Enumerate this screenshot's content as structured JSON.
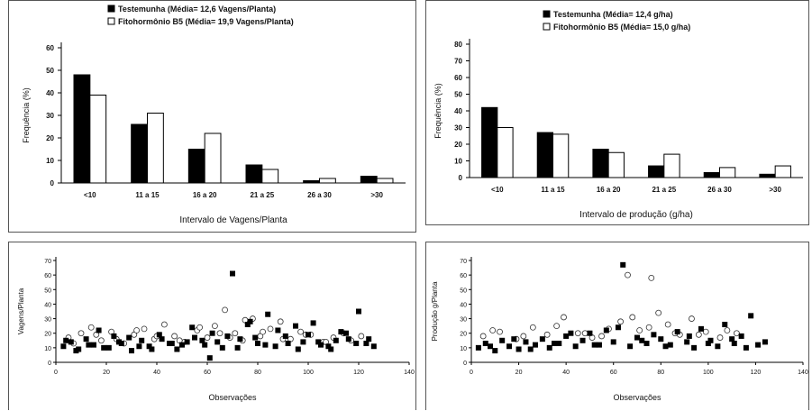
{
  "chart_data": [
    {
      "type": "bar",
      "legend": [
        "Testemunha (Média= 12,6 Vagens/Planta)",
        "Fitohormônio B5 (Média= 19,9 Vagens/Planta)"
      ],
      "legend_position": "top",
      "categories": [
        "<10",
        "11 a 15",
        "16 a 20",
        "21 a 25",
        "26 a 30",
        ">30"
      ],
      "series": [
        {
          "name": "Testemunha (Média= 12,6 Vagens/Planta)",
          "color": "#000000",
          "values": [
            48,
            26,
            15,
            8,
            1,
            3
          ]
        },
        {
          "name": "Fitohormônio B5 (Média= 19,9 Vagens/Planta)",
          "color": "#ffffff",
          "values": [
            39,
            31,
            22,
            6,
            2,
            2
          ]
        }
      ],
      "xlabel": "Intervalo de Vagens/Planta",
      "ylabel": "Frequência (%)",
      "ylim": [
        0,
        60
      ],
      "yticks": [
        0,
        10,
        20,
        30,
        40,
        50,
        60
      ],
      "grid": false
    },
    {
      "type": "bar",
      "legend": [
        "Testemunha (Média= 12,4 g/ha)",
        "Fitohormônio B5 (Média= 15,0 g/ha)"
      ],
      "legend_position": "top",
      "categories": [
        "<10",
        "11 a 15",
        "16 a 20",
        "21 a 25",
        "26 a 30",
        ">30"
      ],
      "series": [
        {
          "name": "Testemunha (Média= 12,4 g/ha)",
          "color": "#000000",
          "values": [
            42,
            27,
            17,
            7,
            3,
            2
          ]
        },
        {
          "name": "Fitohormônio B5 (Média= 15,0 g/ha)",
          "color": "#ffffff",
          "values": [
            30,
            26,
            15,
            14,
            6,
            7
          ]
        }
      ],
      "xlabel": "Intervalo de produção (g/ha)",
      "ylabel": "Frequência (%)",
      "ylim": [
        0,
        80
      ],
      "yticks": [
        0,
        10,
        20,
        30,
        40,
        50,
        60,
        70,
        80
      ],
      "grid": false
    },
    {
      "type": "scatter",
      "series": [
        {
          "name": "Testemunha",
          "color": "#000000",
          "marker": "square",
          "x": [
            3,
            6,
            9,
            12,
            15,
            19,
            23,
            26,
            30,
            34,
            37,
            41,
            45,
            48,
            52,
            55,
            59,
            62,
            66,
            70,
            73,
            77,
            80,
            84,
            87,
            91,
            95,
            98,
            102,
            105,
            109,
            113,
            116,
            120,
            123,
            126,
            4,
            8,
            13,
            17,
            21,
            25,
            29,
            33,
            38,
            42,
            46,
            50,
            54,
            58,
            61,
            64,
            68,
            72,
            76,
            79,
            83,
            88,
            92,
            96,
            100,
            104,
            108,
            111,
            115,
            119,
            124
          ],
          "y": [
            11,
            14,
            9,
            16,
            12,
            10,
            18,
            13,
            8,
            15,
            11,
            19,
            13,
            9,
            14,
            17,
            12,
            20,
            10,
            61,
            16,
            28,
            13,
            33,
            11,
            18,
            25,
            14,
            27,
            12,
            9,
            21,
            16,
            35,
            13,
            11,
            15,
            8,
            12,
            22,
            10,
            14,
            17,
            11,
            9,
            16,
            13,
            12,
            24,
            15,
            3,
            14,
            18,
            10,
            26,
            17,
            12,
            22,
            13,
            9,
            19,
            14,
            11,
            15,
            20,
            13,
            16
          ]
        },
        {
          "name": "Fitohormônio B5",
          "color": "#ffffff",
          "marker": "circle",
          "x": [
            5,
            10,
            14,
            18,
            22,
            27,
            31,
            35,
            39,
            43,
            47,
            51,
            56,
            60,
            63,
            67,
            71,
            74,
            78,
            81,
            85,
            89,
            93,
            97,
            101,
            106,
            110,
            114,
            117,
            121,
            7,
            16,
            24,
            32,
            40,
            49,
            57,
            65,
            69,
            75,
            82,
            90,
            99,
            107
          ],
          "y": [
            17,
            20,
            24,
            15,
            21,
            13,
            19,
            23,
            16,
            26,
            18,
            14,
            22,
            17,
            25,
            36,
            20,
            15,
            30,
            18,
            23,
            28,
            16,
            21,
            19,
            14,
            17,
            20,
            15,
            18,
            13,
            19,
            16,
            22,
            18,
            15,
            24,
            20,
            17,
            29,
            21,
            16,
            19,
            14
          ]
        }
      ],
      "xlabel": "Observações",
      "ylabel": "Vagens/Planta",
      "xlim": [
        0,
        140
      ],
      "ylim": [
        0,
        70
      ],
      "xticks": [
        0,
        20,
        40,
        60,
        80,
        100,
        120,
        140
      ],
      "yticks": [
        0,
        10,
        20,
        30,
        40,
        50,
        60,
        70
      ]
    },
    {
      "type": "scatter",
      "series": [
        {
          "name": "Testemunha",
          "color": "#000000",
          "marker": "square",
          "x": [
            3,
            6,
            10,
            13,
            16,
            20,
            23,
            27,
            30,
            33,
            37,
            40,
            44,
            47,
            50,
            54,
            57,
            60,
            64,
            67,
            70,
            74,
            77,
            80,
            84,
            87,
            91,
            94,
            97,
            101,
            104,
            107,
            111,
            114,
            118,
            121,
            124,
            8,
            18,
            25,
            35,
            42,
            52,
            62,
            72,
            82,
            92,
            100,
            110,
            116
          ],
          "y": [
            10,
            13,
            8,
            15,
            11,
            9,
            14,
            12,
            16,
            10,
            13,
            18,
            11,
            15,
            20,
            12,
            22,
            14,
            67,
            11,
            17,
            13,
            19,
            16,
            12,
            21,
            14,
            10,
            23,
            15,
            11,
            26,
            13,
            18,
            32,
            12,
            14,
            11,
            16,
            9,
            13,
            20,
            12,
            24,
            15,
            11,
            18,
            13,
            16,
            10
          ]
        },
        {
          "name": "Fitohormônio B5",
          "color": "#ffffff",
          "marker": "circle",
          "x": [
            5,
            12,
            19,
            26,
            32,
            39,
            45,
            51,
            58,
            63,
            66,
            71,
            76,
            79,
            83,
            88,
            93,
            99,
            105,
            112,
            9,
            22,
            36,
            48,
            55,
            68,
            75,
            86,
            96,
            108
          ],
          "y": [
            18,
            21,
            16,
            24,
            19,
            31,
            20,
            17,
            23,
            28,
            60,
            22,
            58,
            34,
            26,
            19,
            30,
            21,
            17,
            20,
            22,
            18,
            25,
            20,
            18,
            31,
            24,
            20,
            19,
            22
          ]
        }
      ],
      "xlabel": "Observações",
      "ylabel": "Produção g/Planta",
      "xlim": [
        0,
        140
      ],
      "ylim": [
        0,
        70
      ],
      "xticks": [
        0,
        20,
        40,
        60,
        80,
        100,
        120,
        140
      ],
      "yticks": [
        0,
        10,
        20,
        30,
        40,
        50,
        60,
        70
      ]
    }
  ]
}
